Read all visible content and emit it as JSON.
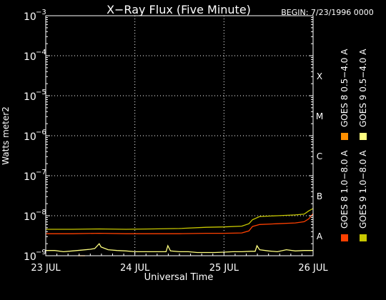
{
  "chart_data": {
    "type": "line",
    "title": "X−Ray Flux (Five Minute)",
    "begin_label": "BEGIN: 7/23/1996 0000",
    "ylabel": "Watts meter2",
    "xlabel": "Universal Time",
    "y_scale": "log",
    "ylim_exp": [
      -9,
      -3
    ],
    "y_ticks": [
      {
        "base": "10",
        "exp": "−3",
        "value_exp": -3
      },
      {
        "base": "10",
        "exp": "−4",
        "value_exp": -4
      },
      {
        "base": "10",
        "exp": "−5",
        "value_exp": -5
      },
      {
        "base": "10",
        "exp": "−6",
        "value_exp": -6
      },
      {
        "base": "10",
        "exp": "−7",
        "value_exp": -7
      },
      {
        "base": "10",
        "exp": "−8",
        "value_exp": -8
      },
      {
        "base": "10",
        "exp": "−9",
        "value_exp": -9
      }
    ],
    "x_ticks": [
      "23 JUL",
      "24 JUL",
      "25 JUL",
      "26 JUL"
    ],
    "xlim_days": [
      0,
      3
    ],
    "flare_classes": [
      {
        "label": "X",
        "exp": -4
      },
      {
        "label": "M",
        "exp": -5
      },
      {
        "label": "C",
        "exp": -6
      },
      {
        "label": "B",
        "exp": -7
      },
      {
        "label": "A",
        "exp": -8
      }
    ],
    "grid": "dotted",
    "legend_position": "right",
    "series": [
      {
        "name": "GOES 8 1.0−8.0 A",
        "color": "#ff4000",
        "x": [
          0,
          0.1,
          0.3,
          0.6,
          0.9,
          1.2,
          1.5,
          1.8,
          2.0,
          2.2,
          2.28,
          2.32,
          2.4,
          2.6,
          2.8,
          2.9,
          2.95,
          3.0
        ],
        "y_exp": [
          -8.45,
          -8.45,
          -8.45,
          -8.44,
          -8.45,
          -8.45,
          -8.45,
          -8.44,
          -8.44,
          -8.43,
          -8.38,
          -8.27,
          -8.22,
          -8.2,
          -8.18,
          -8.15,
          -8.08,
          -7.95
        ]
      },
      {
        "name": "GOES 9 1.0−8.0 A",
        "color": "#c8c800",
        "x": [
          0,
          0.3,
          0.6,
          0.9,
          1.2,
          1.5,
          1.8,
          2.0,
          2.2,
          2.28,
          2.32,
          2.4,
          2.6,
          2.8,
          2.9,
          2.95,
          3.0
        ],
        "y_exp": [
          -8.34,
          -8.34,
          -8.33,
          -8.34,
          -8.33,
          -8.32,
          -8.29,
          -8.28,
          -8.26,
          -8.2,
          -8.1,
          -8.02,
          -8.0,
          -7.98,
          -7.96,
          -7.88,
          -7.82
        ]
      },
      {
        "name": "GOES 8 0.5−4.0 A",
        "color": "#ff9000",
        "x": [
          0.36,
          0.38,
          0.4,
          0.42,
          0.44
        ],
        "y_exp": [
          -9.0,
          -9.1,
          -9.0,
          -9.15,
          -9.0
        ]
      },
      {
        "name": "GOES 9 0.5−4.0 A",
        "color": "#ffff80",
        "x": [
          0,
          0.1,
          0.2,
          0.3,
          0.4,
          0.5,
          0.55,
          0.6,
          0.62,
          0.7,
          0.8,
          0.9,
          1.0,
          1.1,
          1.2,
          1.3,
          1.35,
          1.37,
          1.4,
          1.5,
          1.6,
          1.7,
          1.8,
          1.9,
          2.0,
          2.1,
          2.2,
          2.3,
          2.35,
          2.37,
          2.4,
          2.5,
          2.6,
          2.7,
          2.8,
          2.9,
          3.0
        ],
        "y_exp": [
          -8.87,
          -8.87,
          -8.9,
          -8.88,
          -8.86,
          -8.84,
          -8.82,
          -8.7,
          -8.78,
          -8.85,
          -8.87,
          -8.88,
          -8.9,
          -8.9,
          -8.9,
          -8.9,
          -8.9,
          -8.75,
          -8.88,
          -8.9,
          -8.9,
          -8.92,
          -8.92,
          -8.92,
          -8.91,
          -8.9,
          -8.9,
          -8.89,
          -8.89,
          -8.75,
          -8.85,
          -8.88,
          -8.9,
          -8.85,
          -8.88,
          -8.87,
          -8.87
        ]
      }
    ]
  }
}
